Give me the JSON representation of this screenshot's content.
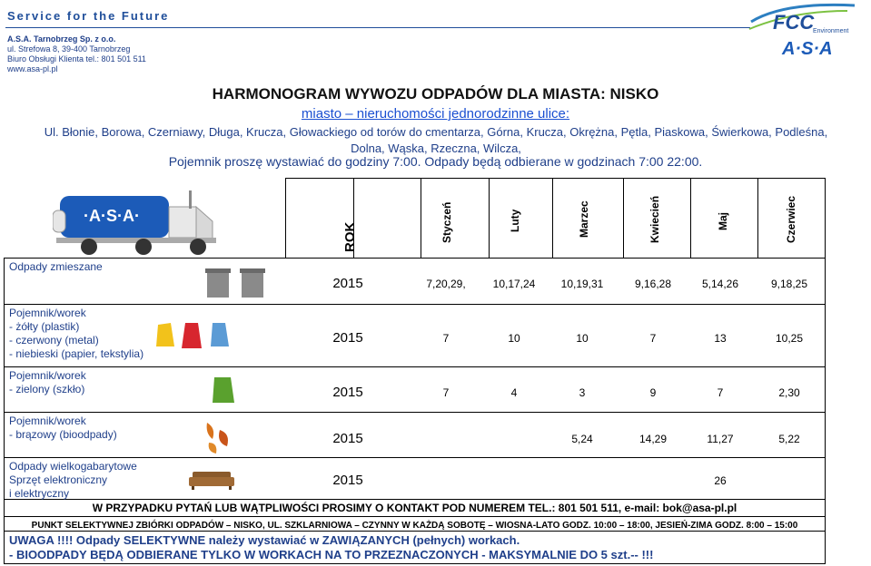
{
  "header": {
    "brand": "Service for the Future",
    "company": "A.S.A. Tarnobrzeg Sp. z o.o.",
    "street": "ul. Strefowa 8, 39-400 Tarnobrzeg",
    "phone": "Biuro Obsługi Klienta tel.: 801 501 511",
    "web": "www.asa-pl.pl",
    "logo_top": "FCC",
    "logo_env": "Environment",
    "logo_bottom": "A·S·A"
  },
  "title": "HARMONOGRAM WYWOZU ODPADÓW DLA MIASTA: NISKO",
  "subtitle": "miasto – nieruchomości jednorodzinne ulice:",
  "streets_line1": "Ul. Błonie, Borowa, Czerniawy, Długa, Krucza, Głowackiego od torów do cmentarza, Górna, Krucza, Okrężna, Pętla, Piaskowa, Świerkowa, Podleśna,",
  "streets_line2": "Dolna, Wąska, Rzeczna, Wilcza,",
  "hours": "Pojemnik proszę wystawiać do godziny 7:00. Odpady będą odbierane w godzinach 7:00 22:00.",
  "table": {
    "truck_text": "·A·S·A·",
    "year_header": "ROK",
    "months": [
      "Styczeń",
      "Luty",
      "Marzec",
      "Kwiecień",
      "Maj",
      "Czerwiec"
    ],
    "rows": [
      {
        "label": [
          "Odpady zmieszane"
        ],
        "year": "2015",
        "values": [
          "7,20,29,",
          "10,17,24",
          "10,19,31",
          "9,16,28",
          "5,14,26",
          "9,18,25"
        ]
      },
      {
        "label": [
          "Pojemnik/worek",
          "- żółty (plastik)",
          "- czerwony (metal)",
          "- niebieski (papier, tekstylia)"
        ],
        "year": "2015",
        "values": [
          "7",
          "10",
          "10",
          "7",
          "13",
          "10,25"
        ]
      },
      {
        "label": [
          "Pojemnik/worek",
          "- zielony (szkło)"
        ],
        "year": "2015",
        "values": [
          "7",
          "4",
          "3",
          "9",
          "7",
          "2,30"
        ]
      },
      {
        "label": [
          "Pojemnik/worek",
          "- brązowy (bioodpady)"
        ],
        "year": "2015",
        "values": [
          "",
          "",
          "5,24",
          "14,29",
          "11,27",
          "5,22"
        ]
      },
      {
        "label": [
          "Odpady wielkogabarytowe",
          "Sprzęt elektroniczny",
          "i elektryczny"
        ],
        "year": "2015",
        "values": [
          "",
          "",
          "",
          "",
          "26",
          ""
        ]
      }
    ]
  },
  "footer": {
    "contact": "W PRZYPADKU PYTAŃ LUB WĄTPLIWOŚCI PROSIMY O KONTAKT POD NUMEREM TEL.: 801 501 511, e-mail: bok@asa-pl.pl",
    "pszok": "PUNKT SELEKTYWNEJ ZBIÓRKI ODPADÓW – NISKO, UL. SZKLARNIOWA – CZYNNY W KAŻDĄ SOBOTĘ – WIOSNA-LATO GODZ. 10:00 – 18:00, JESIEŃ-ZIMA GODZ. 8:00 – 15:00",
    "warning1": "UWAGA !!!! Odpady SELEKTYWNE należy wystawiać w ZAWIĄZANYCH (pełnych) workach.",
    "warning2": "-   BIOODPADY BĘDĄ ODBIERANE TYLKO W WORKACH NA TO PRZEZNACZONYCH - MAKSYMALNIE DO 5 szt.-- !!!"
  },
  "colors": {
    "navy": "#1f3f8a",
    "blue_link": "#1a4fd1",
    "truck_blue": "#1c5bb8",
    "bag_yellow": "#f2c21b",
    "bag_red": "#d7262e",
    "bag_blue": "#5b9bd5",
    "bag_green": "#5aa12e",
    "leaf_orange": "#d9731c"
  }
}
